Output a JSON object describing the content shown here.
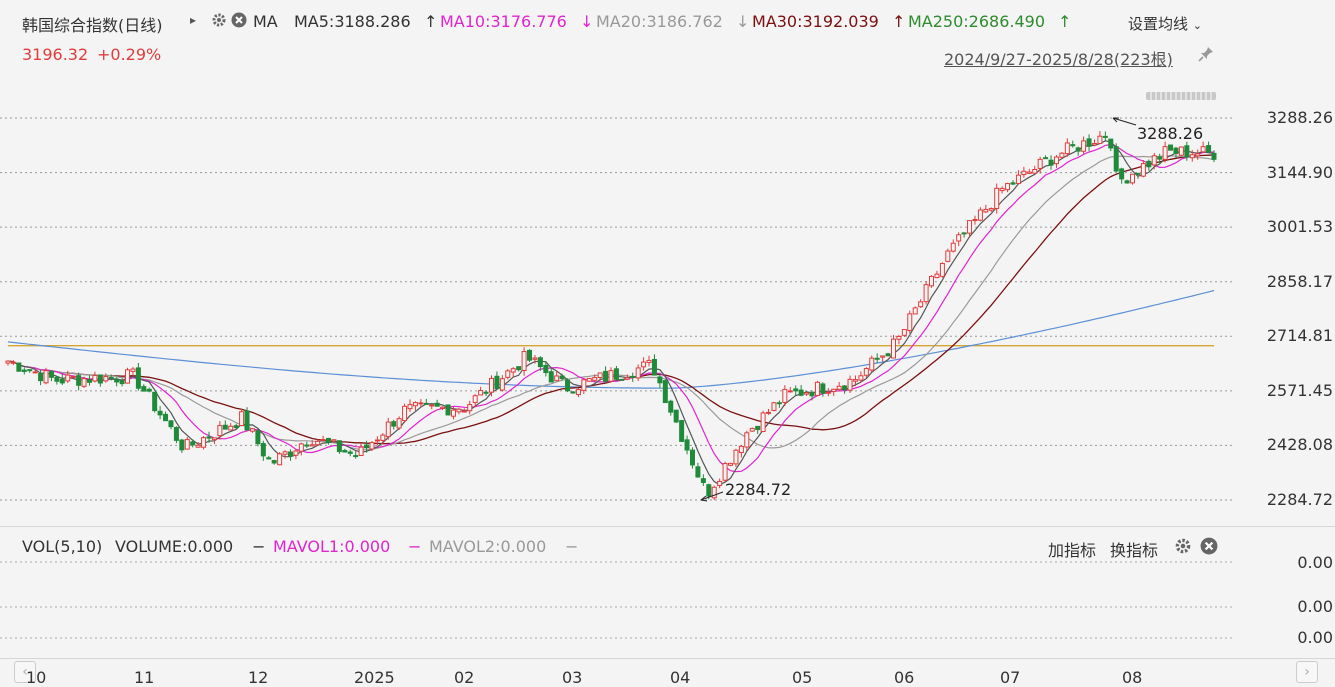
{
  "header": {
    "title": "韩国综合指数(日线)",
    "indicator_name": "MA",
    "ma5": "MA5:3188.286",
    "ma5_arrow": "↑",
    "ma10": "MA10:3176.776",
    "ma10_arrow": "↓",
    "ma20": "MA20:3186.762",
    "ma20_arrow": "↓",
    "ma30": "MA30:3192.039",
    "ma30_arrow": "↑",
    "ma250": "MA250:2686.490",
    "ma250_arrow": "↑",
    "settings_label": "设置均线",
    "price": "3196.32",
    "change": "+0.29%",
    "date_range": "2024/9/27-2025/8/28(223根)"
  },
  "colors": {
    "up": "#e03c3c",
    "down": "#1e8a3a",
    "ma5": "#555555",
    "ma10": "#e024d0",
    "ma20": "#9a9a9a",
    "ma30": "#7a1010",
    "ma60": "#5b8fd6",
    "ma250": "#d4a530"
  },
  "y_axis": [
    "3288.26",
    "3144.90",
    "3001.53",
    "2858.17",
    "2714.81",
    "2571.45",
    "2428.08",
    "2284.72"
  ],
  "annotations": {
    "high": "3288.26",
    "low": "2284.72"
  },
  "volume": {
    "label": "VOL(5,10)",
    "volume": "VOLUME:0.000",
    "mavol1": "MAVOL1:0.000",
    "mavol2": "MAVOL2:0.000",
    "dash": "−",
    "add_indicator": "加指标",
    "switch_indicator": "换指标",
    "y_axis": [
      "0.00",
      "0.00",
      "0.00"
    ]
  },
  "x_axis": [
    "10",
    "11",
    "12",
    "2025",
    "02",
    "03",
    "04",
    "05",
    "06",
    "07",
    "08"
  ],
  "chart_data": {
    "type": "candlestick",
    "ylim": [
      2284.72,
      3288.26
    ],
    "close_points": [
      {
        "date": "2024-09-27",
        "value": 2650
      },
      {
        "date": "2024-10-10",
        "value": 2600
      },
      {
        "date": "2024-11-01",
        "value": 2610
      },
      {
        "date": "2024-11-15",
        "value": 2420
      },
      {
        "date": "2024-12-01",
        "value": 2500
      },
      {
        "date": "2024-12-09",
        "value": 2380
      },
      {
        "date": "2024-12-20",
        "value": 2450
      },
      {
        "date": "2025-01-02",
        "value": 2400
      },
      {
        "date": "2025-01-15",
        "value": 2520
      },
      {
        "date": "2025-02-01",
        "value": 2530
      },
      {
        "date": "2025-02-18",
        "value": 2660
      },
      {
        "date": "2025-03-01",
        "value": 2580
      },
      {
        "date": "2025-03-25",
        "value": 2640
      },
      {
        "date": "2025-04-09",
        "value": 2300
      },
      {
        "date": "2025-04-20",
        "value": 2460
      },
      {
        "date": "2025-05-01",
        "value": 2560
      },
      {
        "date": "2025-05-20",
        "value": 2600
      },
      {
        "date": "2025-06-01",
        "value": 2700
      },
      {
        "date": "2025-06-15",
        "value": 2930
      },
      {
        "date": "2025-06-30",
        "value": 3100
      },
      {
        "date": "2025-07-15",
        "value": 3190
      },
      {
        "date": "2025-07-30",
        "value": 3250
      },
      {
        "date": "2025-08-01",
        "value": 3120
      },
      {
        "date": "2025-08-15",
        "value": 3200
      },
      {
        "date": "2025-08-28",
        "value": 3196.32
      }
    ]
  }
}
